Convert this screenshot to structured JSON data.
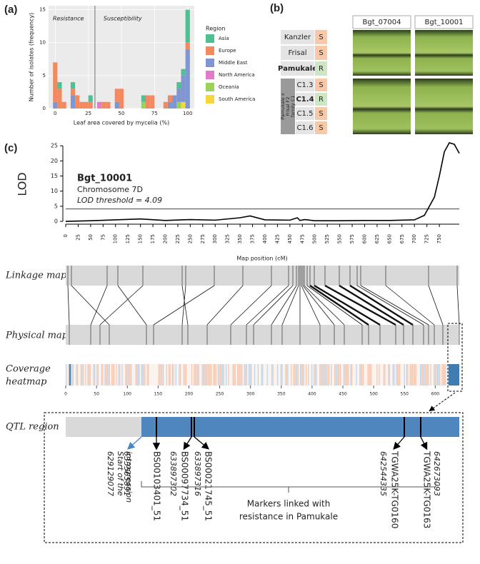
{
  "panel_labels": [
    "(a)",
    "(b)",
    "(c)"
  ],
  "chart_data": [
    {
      "type": "histogram",
      "x_label": "Leaf area covered by mycelia (%)",
      "y_label": "Number of isolates (frequency)",
      "annotations": [
        "Resistance",
        "Susceptibility"
      ],
      "divider_x": 30,
      "legend_title": "Region",
      "grid": true,
      "bins": [
        -1.67,
        1.67,
        5,
        8.33,
        11.67,
        15,
        18.33,
        21.67,
        25,
        28.33,
        31.67,
        35,
        38.33,
        41.67,
        45,
        48.33,
        51.67,
        55,
        58.33,
        61.67,
        65,
        68.33,
        71.67,
        75,
        78.33,
        81.67,
        85,
        88.33,
        91.67,
        95,
        98.33,
        101.67
      ],
      "xlim": [
        -5,
        105
      ],
      "ylim": [
        0,
        15.6
      ],
      "xticks": [
        0,
        25,
        50,
        75,
        100
      ],
      "yticks": [
        0,
        5,
        10,
        15
      ],
      "series": [
        {
          "name": "Asia",
          "color": "#4fbf94",
          "values": [
            0,
            1,
            0,
            0,
            1,
            0,
            0,
            0,
            1,
            0,
            0,
            0,
            0,
            0,
            0,
            0,
            0,
            0,
            0,
            0,
            1,
            0,
            0,
            0,
            0,
            0,
            0,
            0,
            1,
            1,
            5
          ]
        },
        {
          "name": "Europe",
          "color": "#f4895f",
          "values": [
            6,
            3,
            1,
            0,
            1,
            2,
            1,
            1,
            1,
            0,
            0,
            1,
            1,
            0,
            2,
            3,
            0,
            0,
            0,
            0,
            0,
            2,
            2,
            0,
            0,
            1,
            1,
            0,
            0,
            0,
            1
          ]
        },
        {
          "name": "Middle East",
          "color": "#7f96d0",
          "values": [
            1,
            0,
            0,
            0,
            2,
            0,
            0,
            0,
            0,
            0,
            0,
            0,
            0,
            0,
            1,
            0,
            0,
            0,
            0,
            0,
            0,
            0,
            0,
            0,
            0,
            0,
            1,
            2,
            2,
            4,
            9
          ]
        },
        {
          "name": "North America",
          "color": "#e07ac9",
          "values": [
            0,
            0,
            0,
            0,
            0,
            0,
            0,
            0,
            0,
            0,
            1,
            0,
            0,
            0,
            0,
            0,
            0,
            0,
            0,
            0,
            0,
            0,
            0,
            0,
            0,
            0,
            0,
            0,
            0,
            0,
            0
          ]
        },
        {
          "name": "Oceania",
          "color": "#9bd25a",
          "values": [
            0,
            0,
            0,
            0,
            0,
            0,
            0,
            0,
            0,
            0,
            0,
            0,
            0,
            0,
            0,
            0,
            0,
            0,
            0,
            0,
            1,
            0,
            0,
            0,
            0,
            0,
            0,
            0,
            1,
            0,
            0
          ]
        },
        {
          "name": "South America",
          "color": "#f5d63b",
          "values": [
            0,
            0,
            0,
            0,
            0,
            0,
            0,
            0,
            0,
            0,
            0,
            0,
            0,
            0,
            0,
            0,
            0,
            0,
            0,
            0,
            0,
            0,
            0,
            0,
            0,
            0,
            0,
            0,
            0,
            1,
            0
          ]
        }
      ]
    },
    {
      "type": "line",
      "y_label": "LOD",
      "x_label": "Map position (cM)",
      "color": "#000",
      "annotations": [
        "Bgt_10001",
        "Chromosome 7D",
        "LOD threshold = 4.09"
      ],
      "threshold": 4.09,
      "x": [
        0,
        50,
        100,
        150,
        200,
        250,
        300,
        350,
        370,
        400,
        450,
        465,
        470,
        480,
        500,
        550,
        600,
        650,
        700,
        720,
        740,
        750,
        760,
        770,
        780,
        790
      ],
      "values": [
        0,
        0.2,
        0.5,
        0.8,
        0.3,
        0.6,
        0.4,
        1.2,
        1.8,
        0.5,
        0.4,
        1.2,
        0.3,
        0.6,
        0.2,
        0.2,
        0.3,
        0.3,
        0.5,
        2,
        8,
        15,
        23,
        26,
        25.5,
        22.5
      ],
      "xlim": [
        0,
        790
      ],
      "ylim": [
        -1.4,
        26.7
      ],
      "xticks": [
        0,
        25,
        50,
        75,
        100,
        125,
        150,
        175,
        200,
        225,
        250,
        275,
        300,
        325,
        350,
        375,
        400,
        425,
        450,
        475,
        500,
        525,
        550,
        575,
        600,
        625,
        650,
        675,
        700,
        725,
        750
      ],
      "yticks": [
        0,
        5,
        10,
        15,
        20,
        25
      ]
    }
  ],
  "panel_b": {
    "headers": [
      "Bgt_07004",
      "Bgt_10001"
    ],
    "rows": [
      {
        "name": "Kanzler",
        "score": "S",
        "color": "#f8c9a8",
        "emphasis": false
      },
      {
        "name": "Frisal",
        "score": "S",
        "color": "#f8c9a8",
        "emphasis": false
      },
      {
        "name": "Pamukale",
        "score": "R",
        "color": "#cfe6c4",
        "emphasis": true
      }
    ],
    "family_label": [
      "Pamukale x",
      "Frisal F2",
      "family C1"
    ],
    "family_rows": [
      {
        "name": "C1.3",
        "score": "S",
        "color": "#f8c9a8",
        "emphasis": false
      },
      {
        "name": "C1.4",
        "score": "R",
        "color": "#cfe6c4",
        "emphasis": true
      },
      {
        "name": "C1.5",
        "score": "S",
        "color": "#f8c9a8",
        "emphasis": false
      },
      {
        "name": "C1.6",
        "score": "S",
        "color": "#f8c9a8",
        "emphasis": false
      }
    ]
  },
  "maps": {
    "linkage_label": "Linkage map",
    "physical_label": "Physical map",
    "heatmap_label": [
      "Coverage",
      "heatmap"
    ],
    "heatmap_xlim": [
      0,
      639
    ],
    "heatmap_xticks": [
      0,
      50,
      100,
      150,
      200,
      250,
      300,
      350,
      400,
      450,
      500,
      550,
      600
    ]
  },
  "qtl": {
    "label": "QTL region",
    "start_position": "629129077",
    "start_label": [
      "Start of the",
      "introgression"
    ],
    "markers": [
      {
        "name": "BS00103401_51",
        "position": "633565891"
      },
      {
        "name": "BS00097734_51",
        "position": "633897302"
      },
      {
        "name": "BS00021745_51",
        "position": "633897316"
      },
      {
        "name": "TGWA25K-TG0160",
        "position": "642544335"
      },
      {
        "name": "TGWA25K-TG0163",
        "position": "642673093"
      }
    ],
    "bracket_label": [
      "Markers linked with",
      "resistance in Pamukale"
    ]
  }
}
